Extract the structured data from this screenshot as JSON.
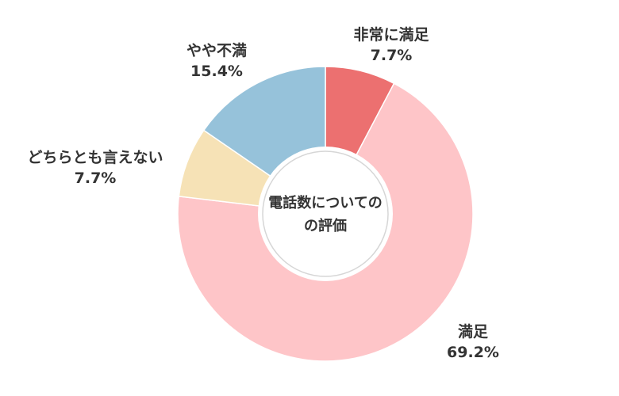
{
  "chart_data": {
    "type": "pie",
    "variant": "donut",
    "title": "電話数についての評価",
    "title_lines": [
      "電話数についての",
      "の評価"
    ],
    "categories": [
      "非常に満足",
      "満足",
      "どちらとも言えない",
      "やや不満"
    ],
    "values": [
      7.7,
      69.2,
      7.7,
      15.4
    ],
    "value_labels": [
      "7.7%",
      "69.2%",
      "7.7%",
      "15.4%"
    ],
    "colors": [
      "#ec7070",
      "#fec5c8",
      "#f6e2b6",
      "#96c2da"
    ],
    "start": "12 o'clock",
    "direction": "clockwise",
    "legend": "none",
    "labels_outside": true
  }
}
